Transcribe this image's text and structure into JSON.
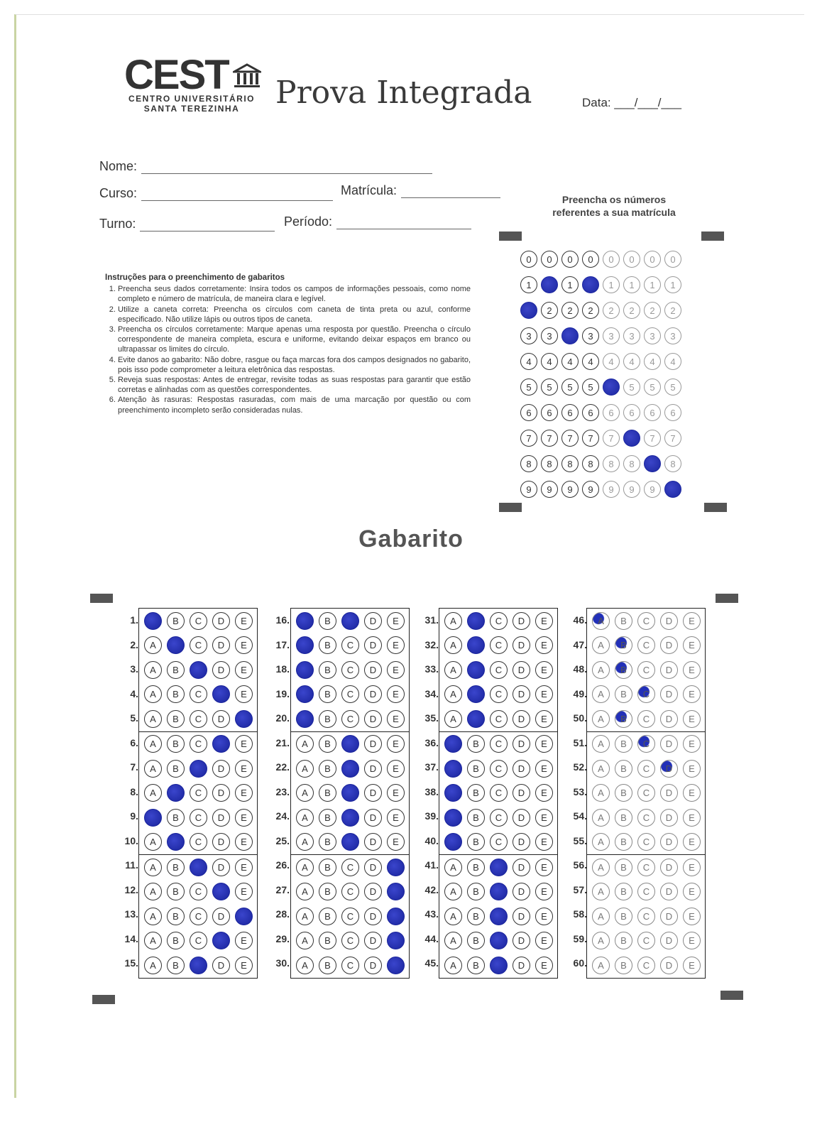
{
  "header": {
    "logo_text": "CEST",
    "logo_sub1": "CENTRO UNIVERSITÁRIO",
    "logo_sub2": "SANTA TEREZINHA",
    "title": "Prova Integrada",
    "date_label": "Data: ___/___/___"
  },
  "form": {
    "nome": "Nome:",
    "curso": "Curso:",
    "matricula": "Matrícula:",
    "turno": "Turno:",
    "periodo": "Período:"
  },
  "matricula_hint": "Preencha os números referentes a sua matrícula",
  "instructions": {
    "title": "Instruções para o preenchimento de gabaritos",
    "items": [
      "Preencha seus dados corretamente: Insira todos os campos de informações pessoais, como nome completo e número de matrícula, de maneira clara e legível.",
      "Utilize a caneta correta: Preencha os círculos com caneta de tinta preta ou azul, conforme especificado. Não utilize lápis ou outros tipos de caneta.",
      "Preencha os círculos corretamente: Marque apenas uma resposta por questão. Preencha o círculo correspondente de maneira completa, escura e uniforme, evitando deixar espaços em branco ou ultrapassar os limites do círculo.",
      "Evite danos ao gabarito: Não dobre, rasgue ou faça marcas fora dos campos designados no gabarito, pois isso pode comprometer a leitura eletrônica das respostas.",
      "Reveja suas respostas: Antes de entregar, revisite todas as suas respostas para garantir que estão corretas e alinhadas com as questões correspondentes.",
      "Atenção às rasuras: Respostas rasuradas, com mais de uma marcação por questão ou com preenchimento incompleto serão consideradas nulas."
    ]
  },
  "matricula_grid": {
    "digits": [
      "0",
      "1",
      "2",
      "3",
      "4",
      "5",
      "6",
      "7",
      "8",
      "9"
    ],
    "filled": [
      2,
      1,
      3,
      1,
      5,
      7,
      8,
      9
    ]
  },
  "gabarito_title": "Gabarito",
  "options": [
    "A",
    "B",
    "C",
    "D",
    "E"
  ],
  "answers": {
    "1": "A",
    "2": "B",
    "3": "C",
    "4": "D",
    "5": "E",
    "6": "D",
    "7": "C",
    "8": "B",
    "9": "A",
    "10": "B",
    "11": "C",
    "12": "D",
    "13": "E",
    "14": "D",
    "15": "C",
    "16": "A,C",
    "17": "A",
    "18": "A",
    "19": "A",
    "20": "A",
    "21": "C",
    "22": "C",
    "23": "C",
    "24": "C",
    "25": "C",
    "26": "E",
    "27": "E",
    "28": "E",
    "29": "E",
    "30": "E",
    "31": "B",
    "32": "B",
    "33": "B",
    "34": "B",
    "35": "B",
    "36": "A",
    "37": "A",
    "38": "A",
    "39": "A",
    "40": "A",
    "41": "C",
    "42": "C",
    "43": "C",
    "44": "C",
    "45": "C",
    "46": "A*",
    "47": "B*",
    "48": "B*",
    "49": "C*",
    "50": "B*",
    "51": "C*",
    "52": "D*",
    "53": "",
    "54": "",
    "55": "",
    "56": "",
    "57": "",
    "58": "",
    "59": "",
    "60": ""
  }
}
